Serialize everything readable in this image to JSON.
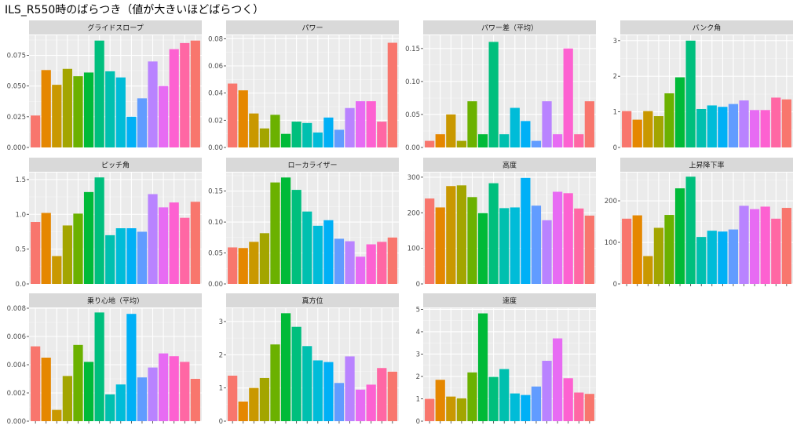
{
  "title": "ILS_R550時のばらつき（値が大きいほどばらつく）",
  "colors": [
    "#F8766D",
    "#E58700",
    "#C99800",
    "#A3A500",
    "#6BB100",
    "#00BA38",
    "#00BF7D",
    "#00C0AF",
    "#00BCD8",
    "#00B0F6",
    "#619CFF",
    "#B983FF",
    "#E76BF3",
    "#FD61D1",
    "#FF67A4"
  ],
  "chart_data": [
    {
      "type": "bar",
      "title": "グライドスロープ",
      "ylim": [
        0,
        0.0913
      ],
      "yticks": [
        0.0,
        0.025,
        0.05,
        0.075
      ],
      "tick_labels": [
        "0.000",
        "0.025",
        "0.050",
        "0.075"
      ],
      "values": [
        0.026,
        0.063,
        0.051,
        0.064,
        0.058,
        0.061,
        0.087,
        0.062,
        0.057,
        0.025,
        0.04,
        0.07,
        0.05,
        0.08,
        0.085,
        0.087
      ]
    },
    {
      "type": "bar",
      "title": "パワー",
      "ylim": [
        0,
        0.0825
      ],
      "yticks": [
        0.0,
        0.02,
        0.04,
        0.06,
        0.08
      ],
      "tick_labels": [
        "0.00",
        "0.02",
        "0.04",
        "0.06",
        "0.08"
      ],
      "values": [
        0.047,
        0.042,
        0.025,
        0.014,
        0.024,
        0.01,
        0.019,
        0.018,
        0.011,
        0.022,
        0.013,
        0.029,
        0.034,
        0.034,
        0.019,
        0.077
      ]
    },
    {
      "type": "bar",
      "title": "パワー差（平均）",
      "ylim": [
        0,
        0.17
      ],
      "yticks": [
        0.0,
        0.05,
        0.1,
        0.15
      ],
      "tick_labels": [
        "0.00",
        "0.05",
        "0.10",
        "0.15"
      ],
      "values": [
        0.01,
        0.02,
        0.05,
        0.01,
        0.07,
        0.02,
        0.16,
        0.02,
        0.06,
        0.04,
        0.01,
        0.07,
        0.02,
        0.15,
        0.02,
        0.07
      ]
    },
    {
      "type": "bar",
      "title": "バンク角",
      "ylim": [
        0,
        3.15
      ],
      "yticks": [
        0,
        1,
        2,
        3
      ],
      "tick_labels": [
        "0",
        "1",
        "2",
        "3"
      ],
      "values": [
        1.02,
        0.78,
        1.02,
        0.88,
        1.52,
        1.97,
        3.0,
        1.08,
        1.18,
        1.14,
        1.22,
        1.32,
        1.05,
        1.05,
        1.4,
        1.35
      ]
    },
    {
      "type": "bar",
      "title": "ピッチ角",
      "ylim": [
        0,
        1.6
      ],
      "yticks": [
        0.0,
        0.5,
        1.0,
        1.5
      ],
      "tick_labels": [
        "0.0",
        "0.5",
        "1.0",
        "1.5"
      ],
      "values": [
        0.89,
        1.02,
        0.4,
        0.84,
        1.01,
        1.32,
        1.53,
        0.7,
        0.8,
        0.8,
        0.75,
        1.29,
        1.1,
        1.17,
        0.95,
        1.18
      ]
    },
    {
      "type": "bar",
      "title": "ローカライザー",
      "ylim": [
        0,
        0.18
      ],
      "yticks": [
        0.0,
        0.05,
        0.1,
        0.15
      ],
      "tick_labels": [
        "0.00",
        "0.05",
        "0.10",
        "0.15"
      ],
      "values": [
        0.059,
        0.058,
        0.068,
        0.082,
        0.164,
        0.172,
        0.152,
        0.117,
        0.094,
        0.103,
        0.073,
        0.069,
        0.044,
        0.064,
        0.068,
        0.075
      ]
    },
    {
      "type": "bar",
      "title": "高度",
      "ylim": [
        0,
        313
      ],
      "yticks": [
        0,
        100,
        200,
        300
      ],
      "tick_labels": [
        "0",
        "100",
        "200",
        "300"
      ],
      "values": [
        240,
        215,
        275,
        277,
        244,
        199,
        283,
        213,
        215,
        298,
        220,
        179,
        259,
        255,
        212,
        192
      ]
    },
    {
      "type": "bar",
      "title": "上昇降下率",
      "ylim": [
        0,
        268
      ],
      "yticks": [
        0,
        100,
        200
      ],
      "tick_labels": [
        "0",
        "100",
        "200"
      ],
      "values": [
        157,
        165,
        67,
        135,
        166,
        230,
        258,
        113,
        128,
        126,
        131,
        188,
        180,
        186,
        157,
        183
      ]
    },
    {
      "type": "bar",
      "title": "乗り心地（平均）",
      "ylim": [
        0,
        0.008
      ],
      "yticks": [
        0.0,
        0.002,
        0.004,
        0.006,
        0.008
      ],
      "tick_labels": [
        "0.000",
        "0.002",
        "0.004",
        "0.006",
        "0.008"
      ],
      "values": [
        0.0053,
        0.0045,
        0.0008,
        0.0032,
        0.0054,
        0.0042,
        0.0077,
        0.0019,
        0.0026,
        0.0076,
        0.0031,
        0.0038,
        0.0048,
        0.0046,
        0.0042,
        0.003
      ]
    },
    {
      "type": "bar",
      "title": "真方位",
      "ylim": [
        0,
        3.4
      ],
      "yticks": [
        0,
        1,
        2,
        3
      ],
      "tick_labels": [
        "0",
        "1",
        "2",
        "3"
      ],
      "values": [
        1.37,
        0.59,
        1.0,
        1.3,
        2.31,
        3.25,
        2.84,
        2.26,
        1.83,
        1.78,
        1.15,
        1.95,
        0.95,
        1.1,
        1.6,
        1.49
      ]
    },
    {
      "type": "bar",
      "title": "速度",
      "ylim": [
        0,
        5.05
      ],
      "yticks": [
        0,
        1,
        2,
        3,
        4,
        5
      ],
      "tick_labels": [
        "0",
        "1",
        "2",
        "3",
        "4",
        "5"
      ],
      "values": [
        1.0,
        1.85,
        1.1,
        1.02,
        2.18,
        4.82,
        1.98,
        2.33,
        1.24,
        1.17,
        1.55,
        2.7,
        3.7,
        1.92,
        1.28,
        1.22
      ]
    }
  ]
}
